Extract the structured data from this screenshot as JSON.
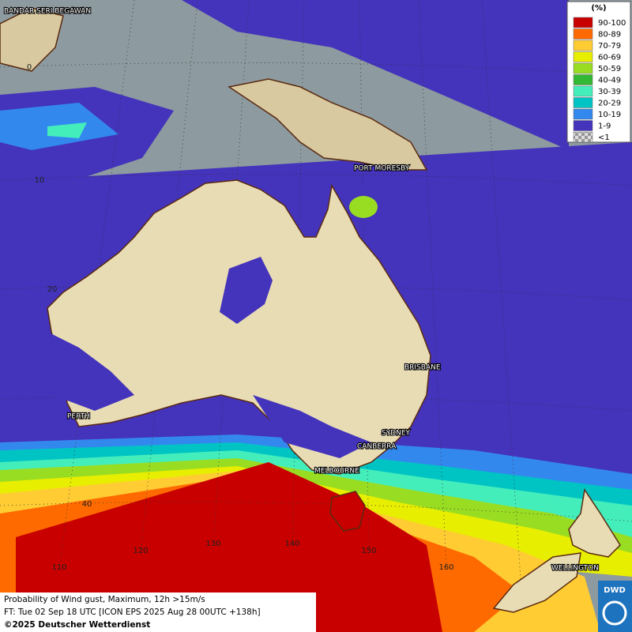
{
  "legend": {
    "title": "(%)",
    "items": [
      {
        "label": "90-100",
        "color": "#c80000"
      },
      {
        "label": "80-89",
        "color": "#ff6a00"
      },
      {
        "label": "70-79",
        "color": "#ffcc33"
      },
      {
        "label": "60-69",
        "color": "#e8ee00"
      },
      {
        "label": "50-59",
        "color": "#99dd22"
      },
      {
        "label": "40-49",
        "color": "#33b833"
      },
      {
        "label": "30-39",
        "color": "#44eebb"
      },
      {
        "label": "20-29",
        "color": "#00c4c4"
      },
      {
        "label": "10-19",
        "color": "#3388ee"
      },
      {
        "label": "1-9",
        "color": "#4433bb"
      },
      {
        "label": "<1",
        "color": "#a0a0a0"
      }
    ]
  },
  "cities": [
    "BANDAR SERI BEGAWAN",
    "PORT MORESBY",
    "BRISBANE",
    "PERTH",
    "SYDNEY",
    "CANBERRA",
    "MELBOURNE",
    "WELLINGTON"
  ],
  "grid_labels": [
    "0",
    "10",
    "20",
    "40",
    "110",
    "120",
    "130",
    "140",
    "150",
    "160"
  ],
  "footer": {
    "line1": "Probability of Wind gust, Maximum, 12h >15m/s",
    "line2": "FT: Tue 02 Sep 18 UTC [ICON EPS 2025 Aug 28 00UTC +138h]",
    "line3": "©2025 Deutscher Wetterdienst"
  },
  "logo": "DWD"
}
